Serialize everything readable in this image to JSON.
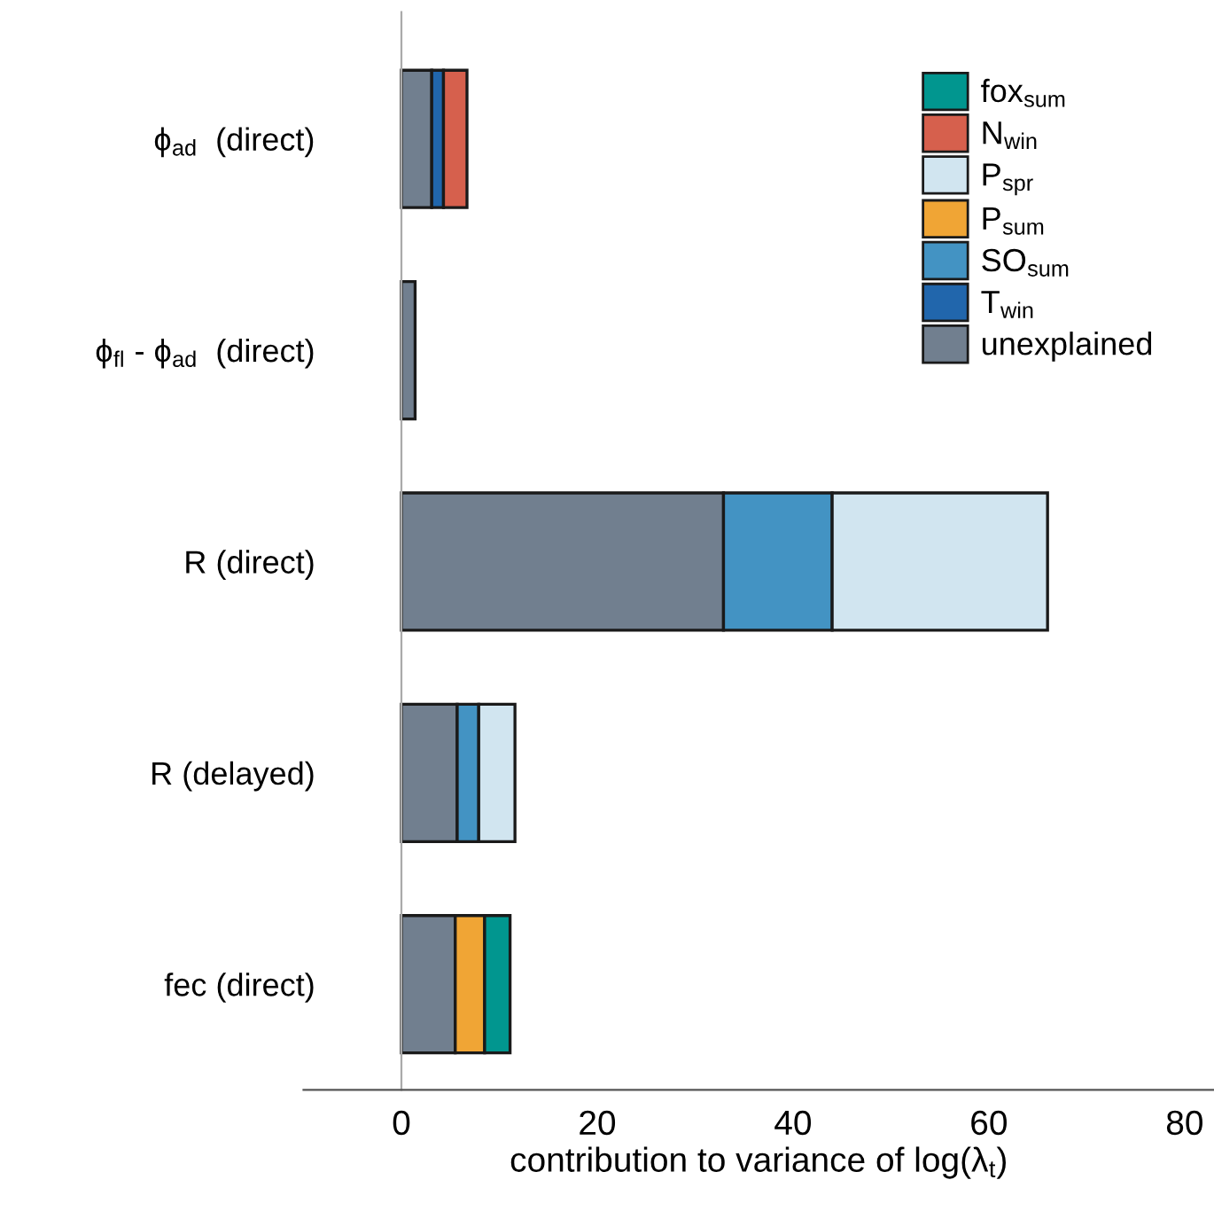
{
  "chart_data": {
    "type": "bar",
    "orientation": "horizontal",
    "stacked": true,
    "categories": [
      "ϕ$_{ad}$  (direct)",
      "ϕ$_{fl}$ - ϕ$_{ad}$  (direct)",
      "R (direct)",
      "R (delayed)",
      "fec (direct)"
    ],
    "series": [
      {
        "name": "unexplained",
        "color": "#717f8f",
        "values": [
          3.1,
          1.4,
          32.9,
          5.7,
          5.5
        ]
      },
      {
        "name": "T$_{win}$",
        "color": "#2166ac",
        "values": [
          1.2,
          null,
          null,
          null,
          null
        ]
      },
      {
        "name": "SO$_{sum}$",
        "color": "#4393c3",
        "values": [
          null,
          null,
          11.1,
          2.2,
          null
        ]
      },
      {
        "name": "P$_{sum}$",
        "color": "#f0a535",
        "values": [
          null,
          null,
          null,
          null,
          3.0
        ]
      },
      {
        "name": "P$_{spr}$",
        "color": "#d1e5f0",
        "values": [
          null,
          null,
          22.0,
          3.7,
          null
        ]
      },
      {
        "name": "N$_{win}$",
        "color": "#d6604d",
        "values": [
          2.4,
          null,
          null,
          null,
          null
        ]
      },
      {
        "name": "fox$_{sum}$",
        "color": "#01968f",
        "values": [
          null,
          null,
          null,
          null,
          2.6
        ]
      }
    ],
    "xlim": [
      -10,
      83
    ],
    "xticks": [
      0,
      20,
      40,
      60,
      80
    ],
    "xlabel": "contribution to variance of log(λ$_{t}$)",
    "legend": "top right"
  }
}
